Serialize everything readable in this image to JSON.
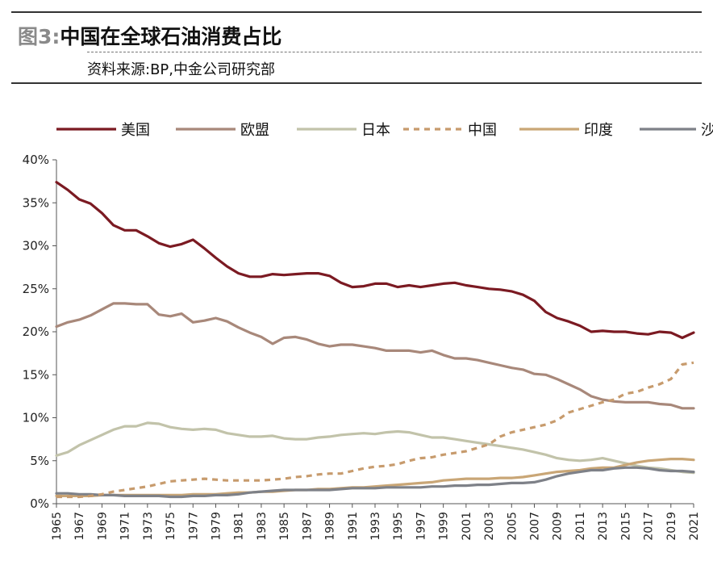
{
  "header": {
    "figure_label": "图3:",
    "title": "中国在全球石油消费占比",
    "source": "资料来源:BP,中金公司研究部"
  },
  "chart_data": {
    "type": "line",
    "title": "中国在全球石油消费占比",
    "xlabel": "",
    "ylabel": "",
    "ylim": [
      0,
      40
    ],
    "yticks": [
      "0%",
      "5%",
      "10%",
      "15%",
      "20%",
      "25%",
      "30%",
      "35%",
      "40%"
    ],
    "xticks": [
      "1965",
      "1967",
      "1969",
      "1971",
      "1973",
      "1975",
      "1977",
      "1979",
      "1981",
      "1983",
      "1985",
      "1987",
      "1989",
      "1991",
      "1993",
      "1995",
      "1997",
      "1999",
      "2001",
      "2003",
      "2005",
      "2007",
      "2009",
      "2011",
      "2013",
      "2015",
      "2017",
      "2019",
      "2021"
    ],
    "legend_position": "top",
    "x": [
      1965,
      1966,
      1967,
      1968,
      1969,
      1970,
      1971,
      1972,
      1973,
      1974,
      1975,
      1976,
      1977,
      1978,
      1979,
      1980,
      1981,
      1982,
      1983,
      1984,
      1985,
      1986,
      1987,
      1988,
      1989,
      1990,
      1991,
      1992,
      1993,
      1994,
      1995,
      1996,
      1997,
      1998,
      1999,
      2000,
      2001,
      2002,
      2003,
      2004,
      2005,
      2006,
      2007,
      2008,
      2009,
      2010,
      2011,
      2012,
      2013,
      2014,
      2015,
      2016,
      2017,
      2018,
      2019,
      2020,
      2021
    ],
    "series": [
      {
        "name": "美国",
        "color": "#7b1a22",
        "dash": "solid",
        "values": [
          37.4,
          36.5,
          35.4,
          34.9,
          33.8,
          32.4,
          31.8,
          31.8,
          31.1,
          30.3,
          29.9,
          30.2,
          30.7,
          29.7,
          28.6,
          27.6,
          26.8,
          26.4,
          26.4,
          26.7,
          26.6,
          26.7,
          26.8,
          26.8,
          26.5,
          25.7,
          25.2,
          25.3,
          25.6,
          25.6,
          25.2,
          25.4,
          25.2,
          25.4,
          25.6,
          25.7,
          25.4,
          25.2,
          25.0,
          24.9,
          24.7,
          24.3,
          23.6,
          22.3,
          21.6,
          21.2,
          20.7,
          20.0,
          20.1,
          20.0,
          20.0,
          19.8,
          19.7,
          20.0,
          19.9,
          19.3,
          19.9
        ]
      },
      {
        "name": "欧盟",
        "color": "#a8887a",
        "dash": "solid",
        "values": [
          20.6,
          21.1,
          21.4,
          21.9,
          22.6,
          23.3,
          23.3,
          23.2,
          23.2,
          22.0,
          21.8,
          22.1,
          21.1,
          21.3,
          21.6,
          21.2,
          20.5,
          19.9,
          19.4,
          18.6,
          19.3,
          19.4,
          19.1,
          18.6,
          18.3,
          18.5,
          18.5,
          18.3,
          18.1,
          17.8,
          17.8,
          17.8,
          17.6,
          17.8,
          17.3,
          16.9,
          16.9,
          16.7,
          16.4,
          16.1,
          15.8,
          15.6,
          15.1,
          15.0,
          14.5,
          13.9,
          13.3,
          12.5,
          12.1,
          11.9,
          11.8,
          11.8,
          11.8,
          11.6,
          11.5,
          11.1,
          11.1
        ]
      },
      {
        "name": "日本",
        "color": "#c2c3aa",
        "dash": "solid",
        "values": [
          5.6,
          6.0,
          6.8,
          7.4,
          8.0,
          8.6,
          9.0,
          9.0,
          9.4,
          9.3,
          8.9,
          8.7,
          8.6,
          8.7,
          8.6,
          8.2,
          8.0,
          7.8,
          7.8,
          7.9,
          7.6,
          7.5,
          7.5,
          7.7,
          7.8,
          8.0,
          8.1,
          8.2,
          8.1,
          8.3,
          8.4,
          8.3,
          8.0,
          7.7,
          7.7,
          7.5,
          7.3,
          7.1,
          6.9,
          6.7,
          6.5,
          6.3,
          6.0,
          5.7,
          5.3,
          5.1,
          5.0,
          5.1,
          5.3,
          5.0,
          4.7,
          4.4,
          4.2,
          4.1,
          3.9,
          3.7,
          3.6
        ]
      },
      {
        "name": "中国",
        "color": "#c79b6d",
        "dash": "dashed",
        "values": [
          0.8,
          0.8,
          0.8,
          0.9,
          1.1,
          1.4,
          1.6,
          1.8,
          2.0,
          2.3,
          2.6,
          2.7,
          2.8,
          2.9,
          2.8,
          2.7,
          2.7,
          2.7,
          2.7,
          2.8,
          2.9,
          3.1,
          3.2,
          3.4,
          3.5,
          3.5,
          3.8,
          4.1,
          4.3,
          4.4,
          4.6,
          5.0,
          5.3,
          5.4,
          5.7,
          5.9,
          6.1,
          6.5,
          6.9,
          7.8,
          8.3,
          8.6,
          8.9,
          9.2,
          9.7,
          10.6,
          11.0,
          11.4,
          11.8,
          12.1,
          12.8,
          13.0,
          13.5,
          13.9,
          14.5,
          16.2,
          16.4
        ]
      },
      {
        "name": "印度",
        "color": "#c9a676",
        "dash": "solid",
        "values": [
          0.9,
          0.9,
          0.9,
          0.9,
          1.0,
          1.0,
          1.0,
          1.0,
          1.0,
          1.0,
          1.0,
          1.0,
          1.1,
          1.1,
          1.1,
          1.2,
          1.3,
          1.3,
          1.4,
          1.4,
          1.5,
          1.6,
          1.6,
          1.7,
          1.7,
          1.8,
          1.9,
          1.9,
          2.0,
          2.1,
          2.2,
          2.3,
          2.4,
          2.5,
          2.7,
          2.8,
          2.9,
          2.9,
          2.9,
          3.0,
          3.0,
          3.1,
          3.3,
          3.5,
          3.7,
          3.8,
          3.9,
          4.1,
          4.2,
          4.2,
          4.5,
          4.8,
          5.0,
          5.1,
          5.2,
          5.2,
          5.1
        ]
      },
      {
        "name": "沙特",
        "color": "#7e8188",
        "dash": "solid",
        "values": [
          1.2,
          1.2,
          1.1,
          1.1,
          1.0,
          1.0,
          0.9,
          0.9,
          0.9,
          0.9,
          0.8,
          0.8,
          0.9,
          0.9,
          1.0,
          1.0,
          1.1,
          1.3,
          1.4,
          1.5,
          1.6,
          1.6,
          1.6,
          1.6,
          1.6,
          1.7,
          1.8,
          1.8,
          1.8,
          1.9,
          1.9,
          1.9,
          1.9,
          2.0,
          2.0,
          2.1,
          2.1,
          2.2,
          2.2,
          2.3,
          2.4,
          2.4,
          2.5,
          2.8,
          3.2,
          3.5,
          3.7,
          3.9,
          3.9,
          4.1,
          4.2,
          4.2,
          4.1,
          3.9,
          3.8,
          3.8,
          3.7
        ]
      }
    ]
  }
}
